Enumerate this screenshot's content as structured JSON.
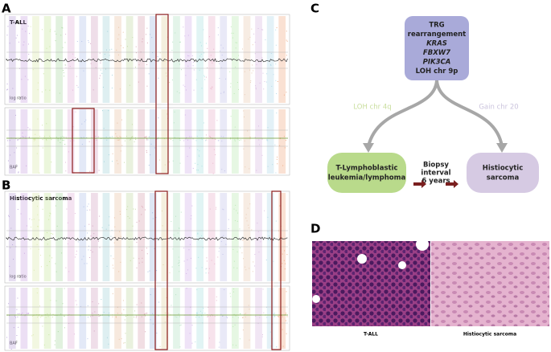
{
  "panels": {
    "a": {
      "label": "A",
      "title": "T-ALL",
      "top_axis": "log ratio",
      "bottom_axis": "BAF"
    },
    "b": {
      "label": "B",
      "title": "Histiocytic sarcoma",
      "top_axis": "log ratio",
      "bottom_axis": "BAF"
    },
    "c": {
      "label": "C",
      "top_node": [
        "TRG",
        "rearrangement",
        "KRAS",
        "FBXW7",
        "PIK3CA",
        "LOH chr 9p"
      ],
      "left_edge": "LOH chr 4q",
      "right_edge": "Gain chr 20",
      "left_node": [
        "T-Lymphoblastic",
        "leukemia/lymphoma"
      ],
      "interval": [
        "Biopsy",
        "interval",
        "6 years"
      ],
      "right_node": [
        "Histiocytic",
        "sarcoma"
      ]
    },
    "d": {
      "label": "D",
      "left_caption": "T-ALL",
      "right_caption": "Histiocytic sarcoma"
    }
  }
}
